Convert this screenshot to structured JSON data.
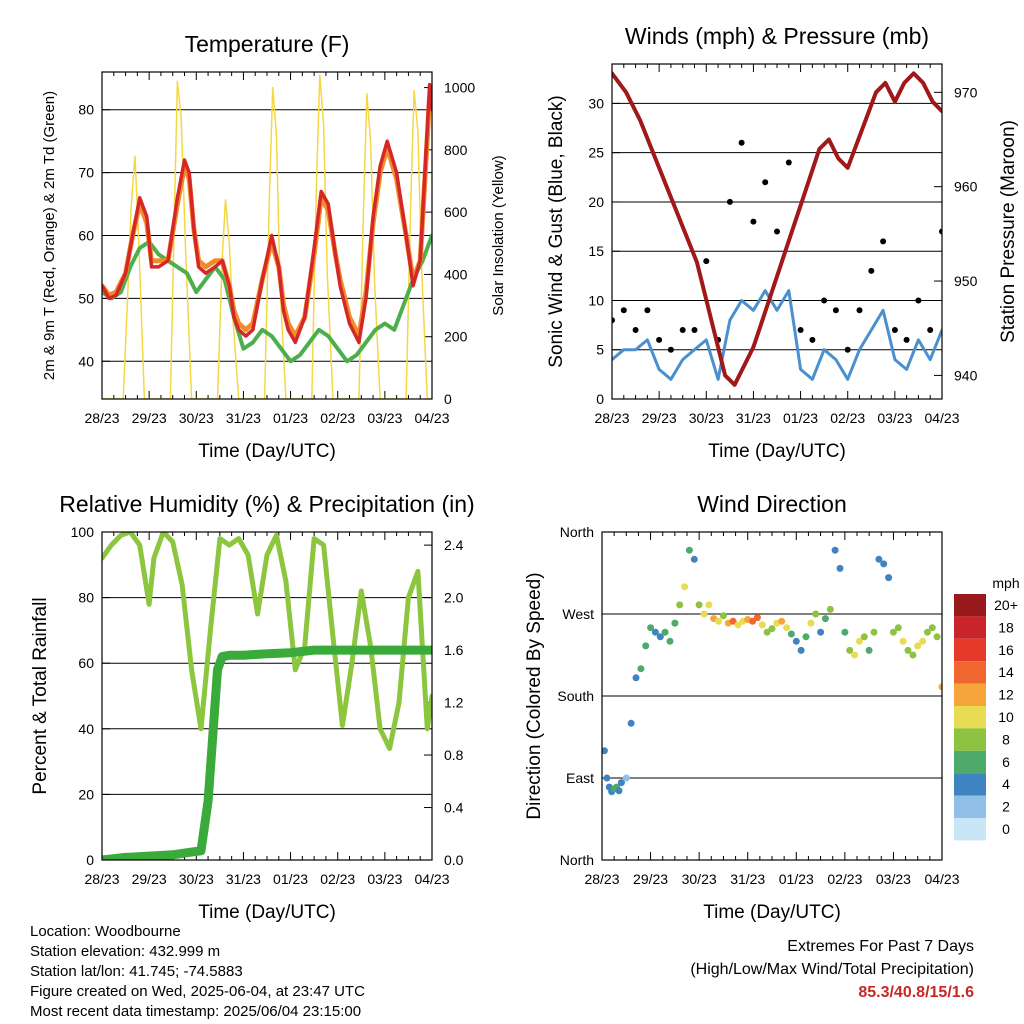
{
  "info": {
    "location": "Location: Woodbourne",
    "elevation": "Station elevation: 432.999 m",
    "latlon": "Station lat/lon: 41.745; -74.5883",
    "created": "Figure created on Wed, 2025-06-04, at 23:47 UTC",
    "recent": "Most recent data timestamp: 2025/06/04 23:15:00",
    "extremes_title": "Extremes For Past 7 Days",
    "extremes_subtitle": "(High/Low/Max Wind/Total Precipitation)",
    "extremes_value": "85.3/40.8/15/1.6"
  },
  "colors": {
    "temp_2m": "#d62728",
    "temp_9m": "#f28c28",
    "dewpoint": "#4cae4c",
    "solar": "#f5d742",
    "wind": "#4a90d0",
    "gust": "#000000",
    "pressure": "#a01818",
    "rh": "#8cc63f",
    "precip": "#3aaa3a",
    "extremes": "#c62828"
  },
  "chart_data": [
    {
      "type": "line",
      "title": "Temperature (F)",
      "xlabel": "Time (Day/UTC)",
      "ylabel": "2m & 9m T (Red, Orange) & 2m Td (Green)",
      "y2label": "Solar Insolation (Yellow)",
      "x_ticks": [
        "28/23",
        "29/23",
        "30/23",
        "31/23",
        "01/23",
        "02/23",
        "03/23",
        "04/23"
      ],
      "xlim": [
        0,
        7
      ],
      "ylim": [
        34,
        86
      ],
      "y_ticks": [
        40,
        50,
        60,
        70,
        80
      ],
      "y2lim": [
        0,
        1050
      ],
      "y2_ticks": [
        0,
        200,
        400,
        600,
        800,
        1000
      ],
      "grid": true,
      "series": [
        {
          "name": "2m T",
          "axis": "left",
          "x": [
            0,
            0.15,
            0.3,
            0.5,
            0.65,
            0.8,
            0.95,
            1.05,
            1.2,
            1.4,
            1.6,
            1.75,
            1.85,
            1.95,
            2.05,
            2.2,
            2.4,
            2.55,
            2.7,
            2.8,
            2.9,
            3.05,
            3.2,
            3.4,
            3.6,
            3.75,
            3.85,
            3.95,
            4.1,
            4.3,
            4.5,
            4.65,
            4.8,
            4.95,
            5.05,
            5.25,
            5.45,
            5.6,
            5.75,
            5.9,
            6.05,
            6.25,
            6.45,
            6.6,
            6.75,
            6.85,
            6.95,
            7.0
          ],
          "values": [
            52,
            50,
            50.5,
            54,
            60,
            66,
            63,
            55,
            55,
            56,
            66,
            72,
            70,
            61,
            55,
            54,
            55,
            56,
            52,
            47,
            45,
            44,
            45,
            53,
            60,
            55,
            48,
            45,
            43,
            47,
            58,
            67,
            65,
            57,
            52,
            46,
            43,
            50,
            63,
            71,
            75,
            70,
            60,
            52,
            56,
            70,
            84,
            80
          ]
        },
        {
          "name": "9m T",
          "axis": "left",
          "x": [
            0,
            0.15,
            0.3,
            0.5,
            0.65,
            0.8,
            0.95,
            1.05,
            1.2,
            1.4,
            1.6,
            1.75,
            1.85,
            1.95,
            2.05,
            2.2,
            2.4,
            2.55,
            2.7,
            2.8,
            2.9,
            3.05,
            3.2,
            3.4,
            3.6,
            3.75,
            3.85,
            3.95,
            4.1,
            4.3,
            4.5,
            4.65,
            4.8,
            4.95,
            5.05,
            5.25,
            5.45,
            5.6,
            5.75,
            5.9,
            6.05,
            6.25,
            6.45,
            6.6,
            6.75,
            6.85,
            6.95,
            7.0
          ],
          "values": [
            52,
            50.5,
            51,
            54,
            60,
            65,
            62,
            56,
            56,
            56,
            65,
            71,
            69,
            61,
            56,
            55,
            56,
            56,
            52,
            48,
            46,
            45,
            46,
            53,
            59,
            55,
            49,
            46,
            44,
            47,
            57,
            66,
            64,
            57,
            53,
            47,
            44,
            51,
            62,
            70,
            74,
            69,
            60,
            53,
            56,
            69,
            82,
            81
          ]
        },
        {
          "name": "2m Td",
          "axis": "left",
          "x": [
            0,
            0.2,
            0.4,
            0.6,
            0.8,
            1.0,
            1.2,
            1.4,
            1.6,
            1.8,
            2.0,
            2.2,
            2.4,
            2.6,
            2.8,
            3.0,
            3.2,
            3.4,
            3.6,
            3.8,
            4.0,
            4.2,
            4.4,
            4.6,
            4.8,
            5.0,
            5.2,
            5.4,
            5.6,
            5.8,
            6.0,
            6.2,
            6.4,
            6.6,
            6.8,
            7.0
          ],
          "values": [
            51,
            50,
            51,
            55,
            58,
            59,
            57,
            56,
            55,
            54,
            51,
            53,
            55,
            53,
            47,
            42,
            43,
            45,
            44,
            42,
            40,
            41,
            43,
            45,
            44,
            42,
            40,
            41,
            43,
            45,
            46,
            45,
            49,
            53,
            56,
            60
          ]
        },
        {
          "name": "Solar Insolation",
          "axis": "right",
          "x": [
            0,
            0.45,
            0.55,
            0.62,
            0.7,
            0.78,
            0.9,
            1.45,
            1.55,
            1.6,
            1.68,
            1.78,
            1.9,
            2.45,
            2.55,
            2.62,
            2.7,
            2.78,
            2.9,
            3.45,
            3.55,
            3.62,
            3.7,
            3.78,
            3.9,
            4.45,
            4.55,
            4.62,
            4.7,
            4.78,
            4.9,
            5.45,
            5.55,
            5.62,
            5.7,
            5.78,
            5.9,
            6.45,
            6.55,
            6.62,
            6.7,
            6.78,
            6.9,
            7.0
          ],
          "values": [
            0,
            0,
            350,
            620,
            780,
            500,
            0,
            0,
            700,
            1020,
            900,
            450,
            0,
            0,
            450,
            640,
            500,
            250,
            0,
            0,
            650,
            1000,
            850,
            350,
            0,
            0,
            700,
            1040,
            880,
            400,
            0,
            0,
            620,
            980,
            820,
            380,
            0,
            0,
            640,
            990,
            860,
            420,
            0,
            0
          ]
        }
      ]
    },
    {
      "type": "scatter",
      "title": "Winds (mph) & Pressure (mb)",
      "xlabel": "Time (Day/UTC)",
      "ylabel": "Sonic Wind & Gust (Blue, Black)",
      "y2label": "Station Pressure (Maroon)",
      "x_ticks": [
        "28/23",
        "29/23",
        "30/23",
        "31/23",
        "01/23",
        "02/23",
        "03/23",
        "04/23"
      ],
      "xlim": [
        0,
        7
      ],
      "ylim": [
        0,
        34
      ],
      "y_ticks": [
        0,
        5,
        10,
        15,
        20,
        25,
        30
      ],
      "y2lim": [
        937.5,
        973
      ],
      "y2_ticks": [
        940,
        950,
        960,
        970
      ],
      "grid": true,
      "series": [
        {
          "name": "Sonic Wind",
          "axis": "left",
          "x": [
            0,
            0.25,
            0.5,
            0.75,
            1.0,
            1.25,
            1.5,
            1.75,
            2.0,
            2.25,
            2.5,
            2.75,
            3.0,
            3.25,
            3.5,
            3.75,
            4.0,
            4.25,
            4.5,
            4.75,
            5.0,
            5.25,
            5.5,
            5.75,
            6.0,
            6.25,
            6.5,
            6.75,
            7.0
          ],
          "values": [
            4,
            5,
            5,
            6,
            3,
            2,
            4,
            5,
            6,
            2,
            8,
            10,
            9,
            11,
            9,
            11,
            3,
            2,
            5,
            4,
            2,
            5,
            7,
            9,
            4,
            3,
            6,
            4,
            7
          ]
        },
        {
          "name": "Gust",
          "axis": "left",
          "x": [
            0,
            0.25,
            0.5,
            0.75,
            1.0,
            1.25,
            1.5,
            1.75,
            2.0,
            2.25,
            2.5,
            2.75,
            3.0,
            3.25,
            3.5,
            3.75,
            4.0,
            4.25,
            4.5,
            4.75,
            5.0,
            5.25,
            5.5,
            5.75,
            6.0,
            6.25,
            6.5,
            6.75,
            7.0
          ],
          "values": [
            8,
            9,
            7,
            9,
            6,
            5,
            7,
            7,
            14,
            6,
            20,
            26,
            18,
            22,
            17,
            24,
            7,
            6,
            10,
            9,
            5,
            9,
            13,
            16,
            7,
            6,
            10,
            7,
            17
          ]
        },
        {
          "name": "Station Pressure",
          "axis": "right",
          "x": [
            0,
            0.3,
            0.6,
            1.0,
            1.4,
            1.8,
            2.0,
            2.2,
            2.4,
            2.6,
            2.8,
            3.0,
            3.2,
            3.4,
            3.6,
            3.8,
            4.0,
            4.2,
            4.4,
            4.6,
            4.8,
            5.0,
            5.3,
            5.6,
            5.8,
            6.0,
            6.2,
            6.4,
            6.6,
            6.8,
            7.0
          ],
          "values": [
            972,
            970,
            967,
            962,
            957,
            952,
            948,
            944,
            940,
            939,
            941,
            943,
            946,
            949,
            952,
            955,
            958,
            961,
            964,
            965,
            963,
            962,
            966,
            970,
            971,
            969,
            971,
            972,
            971,
            969,
            968
          ]
        }
      ]
    },
    {
      "type": "line",
      "title": "Relative Humidity (%) & Precipitation (in)",
      "xlabel": "Time (Day/UTC)",
      "ylabel": "Percent & Total Rainfall",
      "x_ticks": [
        "28/23",
        "29/23",
        "30/23",
        "31/23",
        "01/23",
        "02/23",
        "03/23",
        "04/23"
      ],
      "xlim": [
        0,
        7
      ],
      "ylim": [
        0,
        100
      ],
      "y_ticks": [
        0,
        20,
        40,
        60,
        80,
        100
      ],
      "y2lim": [
        0,
        2.5
      ],
      "y2_ticks": [
        0.0,
        0.4,
        0.8,
        1.2,
        1.6,
        2.0,
        2.4
      ],
      "grid": true,
      "series": [
        {
          "name": "Relative Humidity",
          "axis": "left",
          "x": [
            0,
            0.2,
            0.4,
            0.6,
            0.8,
            1.0,
            1.1,
            1.3,
            1.5,
            1.7,
            1.9,
            2.1,
            2.3,
            2.5,
            2.7,
            2.9,
            3.1,
            3.3,
            3.5,
            3.7,
            3.9,
            4.1,
            4.3,
            4.5,
            4.7,
            4.9,
            5.1,
            5.3,
            5.5,
            5.7,
            5.9,
            6.1,
            6.3,
            6.5,
            6.7,
            6.9,
            7.0
          ],
          "values": [
            92,
            96,
            99,
            100,
            96,
            78,
            92,
            100,
            97,
            84,
            58,
            40,
            70,
            98,
            96,
            98,
            93,
            75,
            93,
            99,
            85,
            58,
            65,
            98,
            96,
            68,
            41,
            60,
            82,
            65,
            40,
            34,
            48,
            80,
            88,
            40,
            50
          ]
        },
        {
          "name": "Total Precipitation",
          "axis": "right",
          "x": [
            0,
            0.5,
            1.0,
            1.5,
            1.9,
            2.1,
            2.25,
            2.35,
            2.45,
            2.55,
            2.7,
            3.0,
            3.4,
            4.0,
            4.5,
            5.0,
            6.0,
            7.0
          ],
          "values": [
            0.0,
            0.02,
            0.03,
            0.04,
            0.06,
            0.07,
            0.45,
            0.95,
            1.45,
            1.55,
            1.56,
            1.56,
            1.57,
            1.58,
            1.6,
            1.6,
            1.6,
            1.6
          ]
        }
      ]
    },
    {
      "type": "scatter",
      "title": "Wind Direction",
      "xlabel": "Time (Day/UTC)",
      "ylabel": "Direction (Colored By Speed)",
      "x_ticks": [
        "28/23",
        "29/23",
        "30/23",
        "31/23",
        "01/23",
        "02/23",
        "03/23",
        "04/23"
      ],
      "xlim": [
        0,
        7
      ],
      "ylim": [
        0,
        360
      ],
      "y_tick_labels": [
        "North",
        "East",
        "South",
        "West",
        "North"
      ],
      "y_tick_values": [
        0,
        90,
        180,
        270,
        360
      ],
      "grid": true,
      "colorbar_title": "mph",
      "colorbar_labels": [
        "20+",
        "18",
        "16",
        "14",
        "12",
        "10",
        "8",
        "6",
        "4",
        "2",
        "0"
      ],
      "colorbar_colors": [
        "#98191c",
        "#c9242a",
        "#e5392c",
        "#f0662f",
        "#f6a53b",
        "#e8dc52",
        "#8dc340",
        "#4daa6a",
        "#3f83c0",
        "#8fbfe6",
        "#c9e6f6"
      ],
      "series": [
        {
          "name": "Direction",
          "x": [
            0.05,
            0.1,
            0.15,
            0.2,
            0.25,
            0.3,
            0.35,
            0.4,
            0.5,
            0.6,
            0.7,
            0.8,
            0.9,
            1.0,
            1.1,
            1.2,
            1.3,
            1.4,
            1.5,
            1.6,
            1.7,
            1.8,
            1.9,
            2.0,
            2.1,
            2.2,
            2.3,
            2.4,
            2.5,
            2.6,
            2.7,
            2.8,
            2.9,
            3.0,
            3.1,
            3.2,
            3.3,
            3.4,
            3.5,
            3.6,
            3.7,
            3.8,
            3.9,
            4.0,
            4.1,
            4.2,
            4.3,
            4.4,
            4.5,
            4.6,
            4.7,
            4.8,
            4.9,
            5.0,
            5.1,
            5.2,
            5.3,
            5.4,
            5.5,
            5.6,
            5.7,
            5.8,
            5.9,
            6.0,
            6.1,
            6.2,
            6.3,
            6.4,
            6.5,
            6.6,
            6.7,
            6.8,
            6.9,
            7.0
          ],
          "values": [
            120,
            90,
            80,
            75,
            78,
            80,
            76,
            85,
            90,
            150,
            200,
            210,
            235,
            255,
            250,
            245,
            250,
            240,
            260,
            280,
            300,
            340,
            330,
            280,
            270,
            280,
            265,
            262,
            268,
            260,
            262,
            258,
            262,
            264,
            262,
            266,
            258,
            250,
            254,
            260,
            262,
            255,
            248,
            240,
            230,
            245,
            260,
            270,
            250,
            265,
            275,
            340,
            320,
            250,
            230,
            225,
            240,
            245,
            230,
            250,
            330,
            325,
            310,
            250,
            255,
            240,
            230,
            225,
            235,
            240,
            250,
            255,
            245,
            190
          ],
          "speed": [
            3,
            3,
            4,
            4,
            5,
            5,
            4,
            3,
            2,
            3,
            4,
            5,
            5,
            5,
            4,
            4,
            5,
            6,
            6,
            7,
            9,
            5,
            4,
            8,
            10,
            9,
            12,
            9,
            8,
            11,
            13,
            10,
            9,
            11,
            13,
            14,
            10,
            8,
            7,
            9,
            12,
            9,
            6,
            4,
            3,
            5,
            9,
            8,
            4,
            6,
            8,
            3,
            4,
            6,
            8,
            9,
            10,
            8,
            6,
            7,
            3,
            3,
            4,
            7,
            8,
            9,
            8,
            7,
            9,
            10,
            8,
            7,
            8,
            12
          ]
        }
      ]
    }
  ]
}
